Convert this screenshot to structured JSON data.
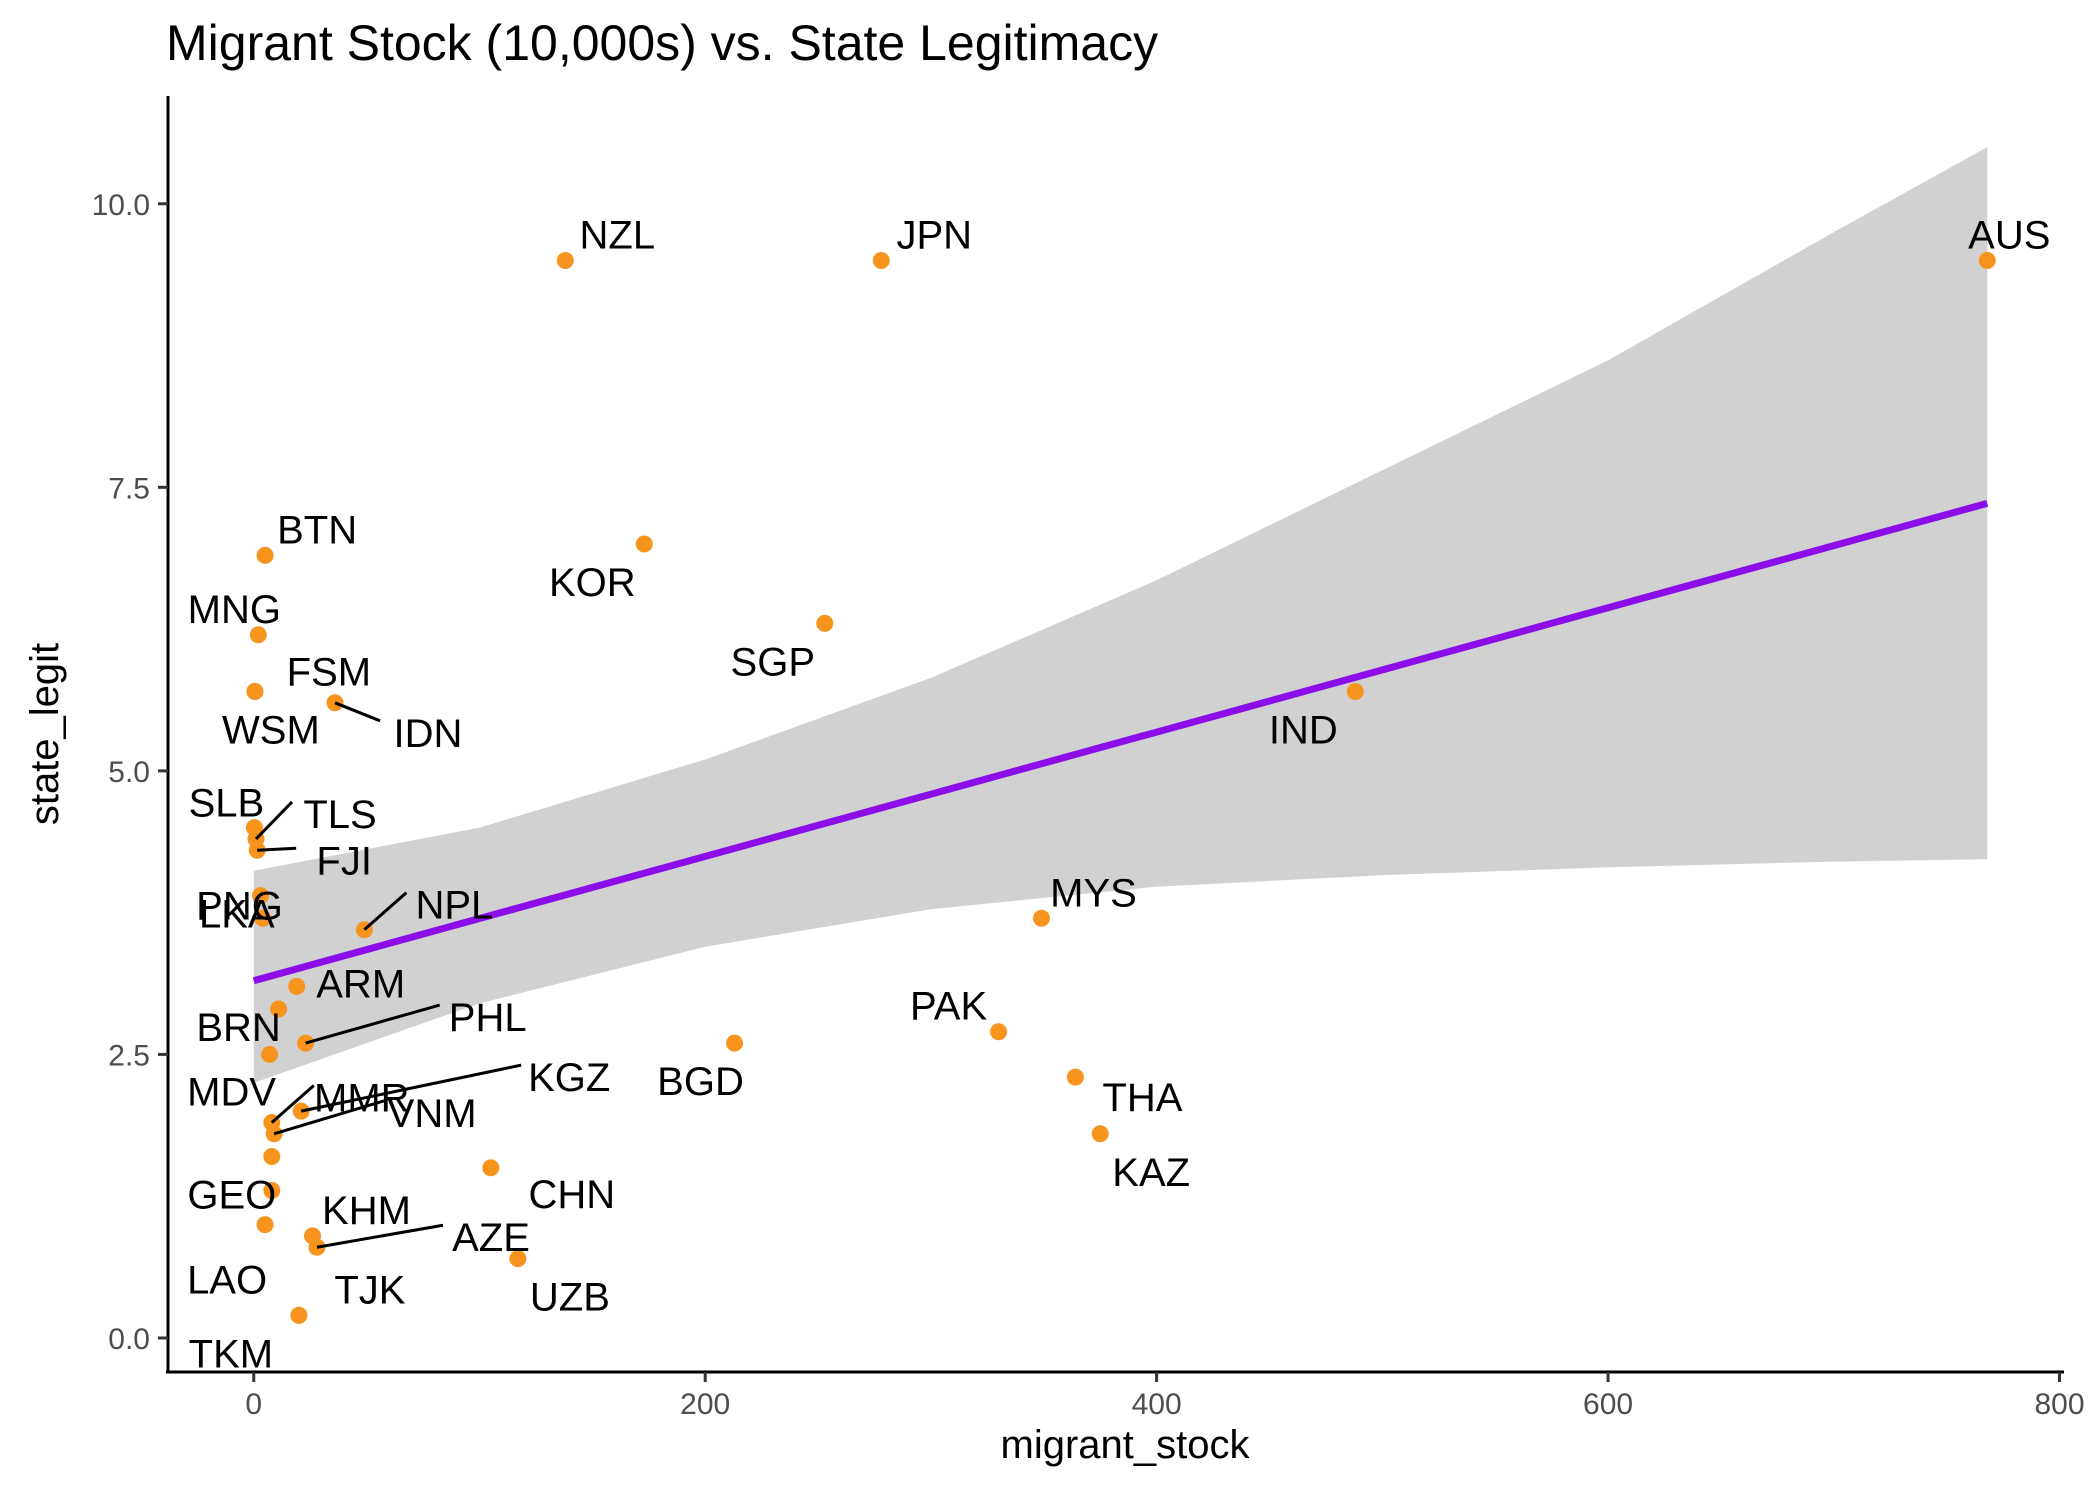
{
  "chart_data": {
    "type": "scatter",
    "title": "Migrant Stock (10,000s) vs. State Legitimacy",
    "xlabel": "migrant_stock",
    "ylabel": "state_legit",
    "xlim": [
      -38,
      802
    ],
    "ylim": [
      -0.3,
      10.95
    ],
    "xticks": [
      0,
      200,
      400,
      600,
      800
    ],
    "xtick_labels": [
      "0",
      "200",
      "400",
      "600",
      "800"
    ],
    "yticks": [
      0,
      2.5,
      5,
      7.5,
      10
    ],
    "ytick_labels": [
      "0.0",
      "2.5",
      "5.0",
      "7.5",
      "10.0"
    ],
    "grid": false,
    "point_color": "#F7941D",
    "points": [
      {
        "label": "NZL",
        "x": 138,
        "y": 9.5
      },
      {
        "label": "JPN",
        "x": 278,
        "y": 9.5
      },
      {
        "label": "AUS",
        "x": 768,
        "y": 9.5
      },
      {
        "label": "BTN",
        "x": 5,
        "y": 6.9
      },
      {
        "label": "KOR",
        "x": 173,
        "y": 7.0
      },
      {
        "label": "MNG",
        "x": 2,
        "y": 6.2
      },
      {
        "label": "SGP",
        "x": 253,
        "y": 6.3
      },
      {
        "label": "FSM",
        "x": 0.5,
        "y": 5.7
      },
      {
        "label": "IDN",
        "x": 36,
        "y": 5.6
      },
      {
        "label": "WSM",
        "x": 0.5,
        "y": 5.7
      },
      {
        "label": "IND",
        "x": 488,
        "y": 5.7
      },
      {
        "label": "SLB",
        "x": 0.3,
        "y": 4.5
      },
      {
        "label": "TLS",
        "x": 1,
        "y": 4.4
      },
      {
        "label": "FJI",
        "x": 1.5,
        "y": 4.3
      },
      {
        "label": "PNG",
        "x": 3,
        "y": 3.9
      },
      {
        "label": "NPL",
        "x": 49,
        "y": 3.6
      },
      {
        "label": "MYS",
        "x": 349,
        "y": 3.7
      },
      {
        "label": "LKA",
        "x": 4,
        "y": 3.7
      },
      {
        "label": "ARM",
        "x": 19,
        "y": 3.1
      },
      {
        "label": "BRN",
        "x": 11,
        "y": 2.9
      },
      {
        "label": "PHL",
        "x": 23,
        "y": 2.6
      },
      {
        "label": "PAK",
        "x": 330,
        "y": 2.7
      },
      {
        "label": "BGD",
        "x": 213,
        "y": 2.6
      },
      {
        "label": "MDV",
        "x": 7,
        "y": 2.5
      },
      {
        "label": "MMR",
        "x": 8,
        "y": 1.9
      },
      {
        "label": "KGZ",
        "x": 21,
        "y": 2.0
      },
      {
        "label": "THA",
        "x": 364,
        "y": 2.3
      },
      {
        "label": "KAZ",
        "x": 375,
        "y": 1.8
      },
      {
        "label": "GEO",
        "x": 8,
        "y": 1.6
      },
      {
        "label": "VNM",
        "x": 9,
        "y": 1.8
      },
      {
        "label": "CHN",
        "x": 105,
        "y": 1.5
      },
      {
        "label": "KHM",
        "x": 26,
        "y": 0.9
      },
      {
        "label": "AZE",
        "x": 28,
        "y": 0.8
      },
      {
        "label": "LAO",
        "x": 5,
        "y": 1.0
      },
      {
        "label": "UZB",
        "x": 117,
        "y": 0.7
      },
      {
        "label": "TJK",
        "x": 20,
        "y": 0.2
      },
      {
        "label": "TKM",
        "x": 20,
        "y": 0.2
      },
      {
        "label": "",
        "x": 8,
        "y": 1.3
      }
    ],
    "fit": {
      "method": "lm",
      "color": "#8B0EE8",
      "ribbon_color": "#BDBDBD",
      "x_range": [
        0,
        768
      ],
      "intercept": 3.15,
      "slope": 0.00548,
      "ribbon": [
        {
          "x": 0,
          "lo": 2.25,
          "hi": 4.12
        },
        {
          "x": 100,
          "lo": 2.95,
          "hi": 4.5
        },
        {
          "x": 200,
          "lo": 3.45,
          "hi": 5.1
        },
        {
          "x": 300,
          "lo": 3.78,
          "hi": 5.82
        },
        {
          "x": 400,
          "lo": 3.98,
          "hi": 6.68
        },
        {
          "x": 500,
          "lo": 4.08,
          "hi": 7.65
        },
        {
          "x": 600,
          "lo": 4.15,
          "hi": 8.62
        },
        {
          "x": 700,
          "lo": 4.2,
          "hi": 9.75
        },
        {
          "x": 768,
          "lo": 4.22,
          "hi": 10.5
        }
      ]
    }
  }
}
